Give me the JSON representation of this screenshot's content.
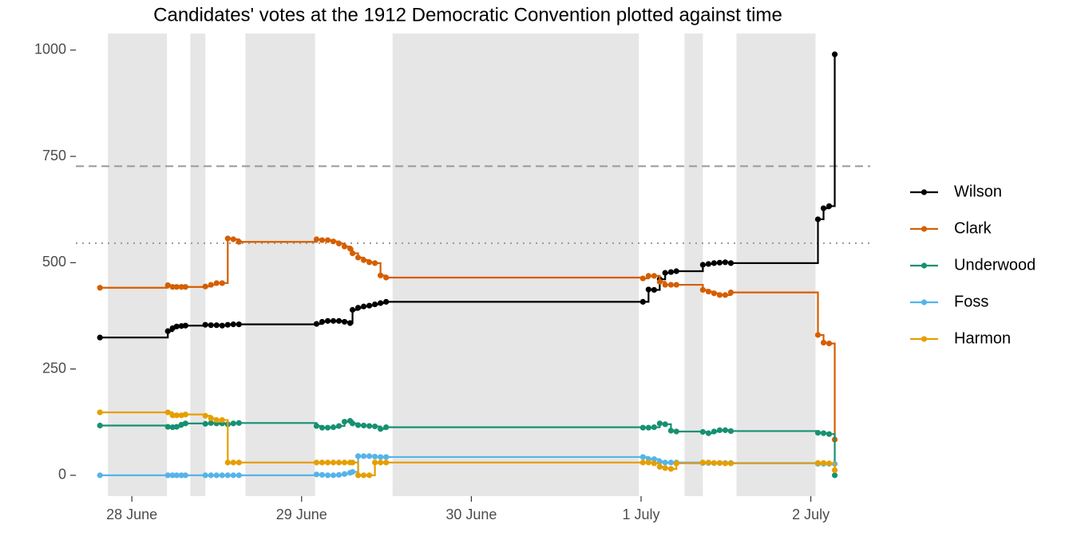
{
  "chart_data": {
    "type": "step",
    "title": "Candidates' votes at the 1912 Democratic Convention plotted against time",
    "x": [
      27.812,
      28.212,
      28.24,
      28.264,
      28.292,
      28.316,
      28.433,
      28.466,
      28.499,
      28.532,
      28.565,
      28.598,
      28.631,
      29.088,
      29.121,
      29.154,
      29.187,
      29.22,
      29.253,
      29.286,
      29.3,
      29.333,
      29.366,
      29.399,
      29.432,
      29.465,
      29.498,
      31.011,
      31.044,
      31.077,
      31.11,
      31.142,
      31.176,
      31.208,
      31.364,
      31.397,
      31.43,
      31.463,
      31.496,
      31.529,
      32.042,
      32.075,
      32.108,
      32.141
    ],
    "series": [
      {
        "name": "Wilson",
        "color": "#000000",
        "values": [
          324,
          339,
          346,
          350,
          351,
          352,
          354,
          353,
          353,
          352,
          354,
          355,
          355,
          356,
          361,
          363,
          363,
          363,
          361,
          358,
          389,
          394,
          397,
          399,
          402,
          405,
          408,
          408,
          437,
          436,
          461,
          476,
          478,
          480,
          495,
          497,
          499,
          500,
          501,
          499,
          602,
          628,
          633,
          990
        ]
      },
      {
        "name": "Clark",
        "color": "#D55E00",
        "values": [
          441,
          447,
          443,
          443,
          443,
          443,
          444,
          448,
          452,
          452,
          557,
          555,
          549,
          555,
          553,
          553,
          550,
          545,
          538,
          533,
          522,
          512,
          506,
          501,
          499,
          470,
          465,
          463,
          469,
          469,
          455,
          448,
          448,
          448,
          436,
          432,
          428,
          424,
          424,
          430,
          330,
          312,
          310,
          84
        ]
      },
      {
        "name": "Underwood",
        "color": "#169171",
        "values": [
          117,
          114,
          113,
          114,
          119,
          122,
          121,
          123,
          122,
          122,
          120,
          122,
          123,
          116,
          112,
          112,
          113,
          116,
          126,
          128,
          122,
          118,
          117,
          116,
          115,
          109,
          113,
          112,
          112,
          113,
          122,
          120,
          105,
          103,
          102,
          99,
          103,
          106,
          106,
          104,
          100,
          99,
          97,
          0
        ]
      },
      {
        "name": "Foss",
        "color": "#56B4E9",
        "values": [
          0,
          0,
          0,
          0,
          0,
          0,
          0,
          0,
          0,
          0,
          0,
          0,
          0,
          2,
          1,
          0,
          0,
          1,
          3,
          6,
          8,
          45,
          45,
          45,
          44,
          43,
          43,
          43,
          38,
          38,
          32,
          30,
          30,
          30,
          29,
          29,
          29,
          29,
          29,
          29,
          27,
          27,
          27,
          27
        ]
      },
      {
        "name": "Harmon",
        "color": "#E69F00",
        "values": [
          148,
          148,
          141,
          141,
          141,
          143,
          140,
          134,
          130,
          130,
          30,
          30,
          30,
          30,
          30,
          30,
          30,
          30,
          30,
          30,
          30,
          0,
          0,
          0,
          30,
          30,
          30,
          30,
          30,
          28,
          20,
          17,
          15,
          28,
          30,
          30,
          29,
          29,
          28,
          28,
          29,
          29,
          28,
          12
        ]
      }
    ],
    "xlim": [
      27.67,
      32.35
    ],
    "xticks": [
      {
        "value": 28,
        "label": "28 June"
      },
      {
        "value": 29,
        "label": "29 June"
      },
      {
        "value": 30,
        "label": "30 June"
      },
      {
        "value": 31,
        "label": "1 July"
      },
      {
        "value": 32,
        "label": "2 July"
      }
    ],
    "ylim": [
      -49,
      1039
    ],
    "yticks": [
      0,
      250,
      500,
      750,
      1000
    ],
    "shaded": [
      [
        27.859,
        28.207
      ],
      [
        28.344,
        28.433
      ],
      [
        28.669,
        29.079
      ],
      [
        29.536,
        30.987
      ],
      [
        31.256,
        31.364
      ],
      [
        31.562,
        32.028
      ]
    ],
    "hlines": [
      {
        "value": 727,
        "style": "dashed"
      },
      {
        "value": 546,
        "style": "dotted"
      }
    ],
    "legend": "right"
  }
}
